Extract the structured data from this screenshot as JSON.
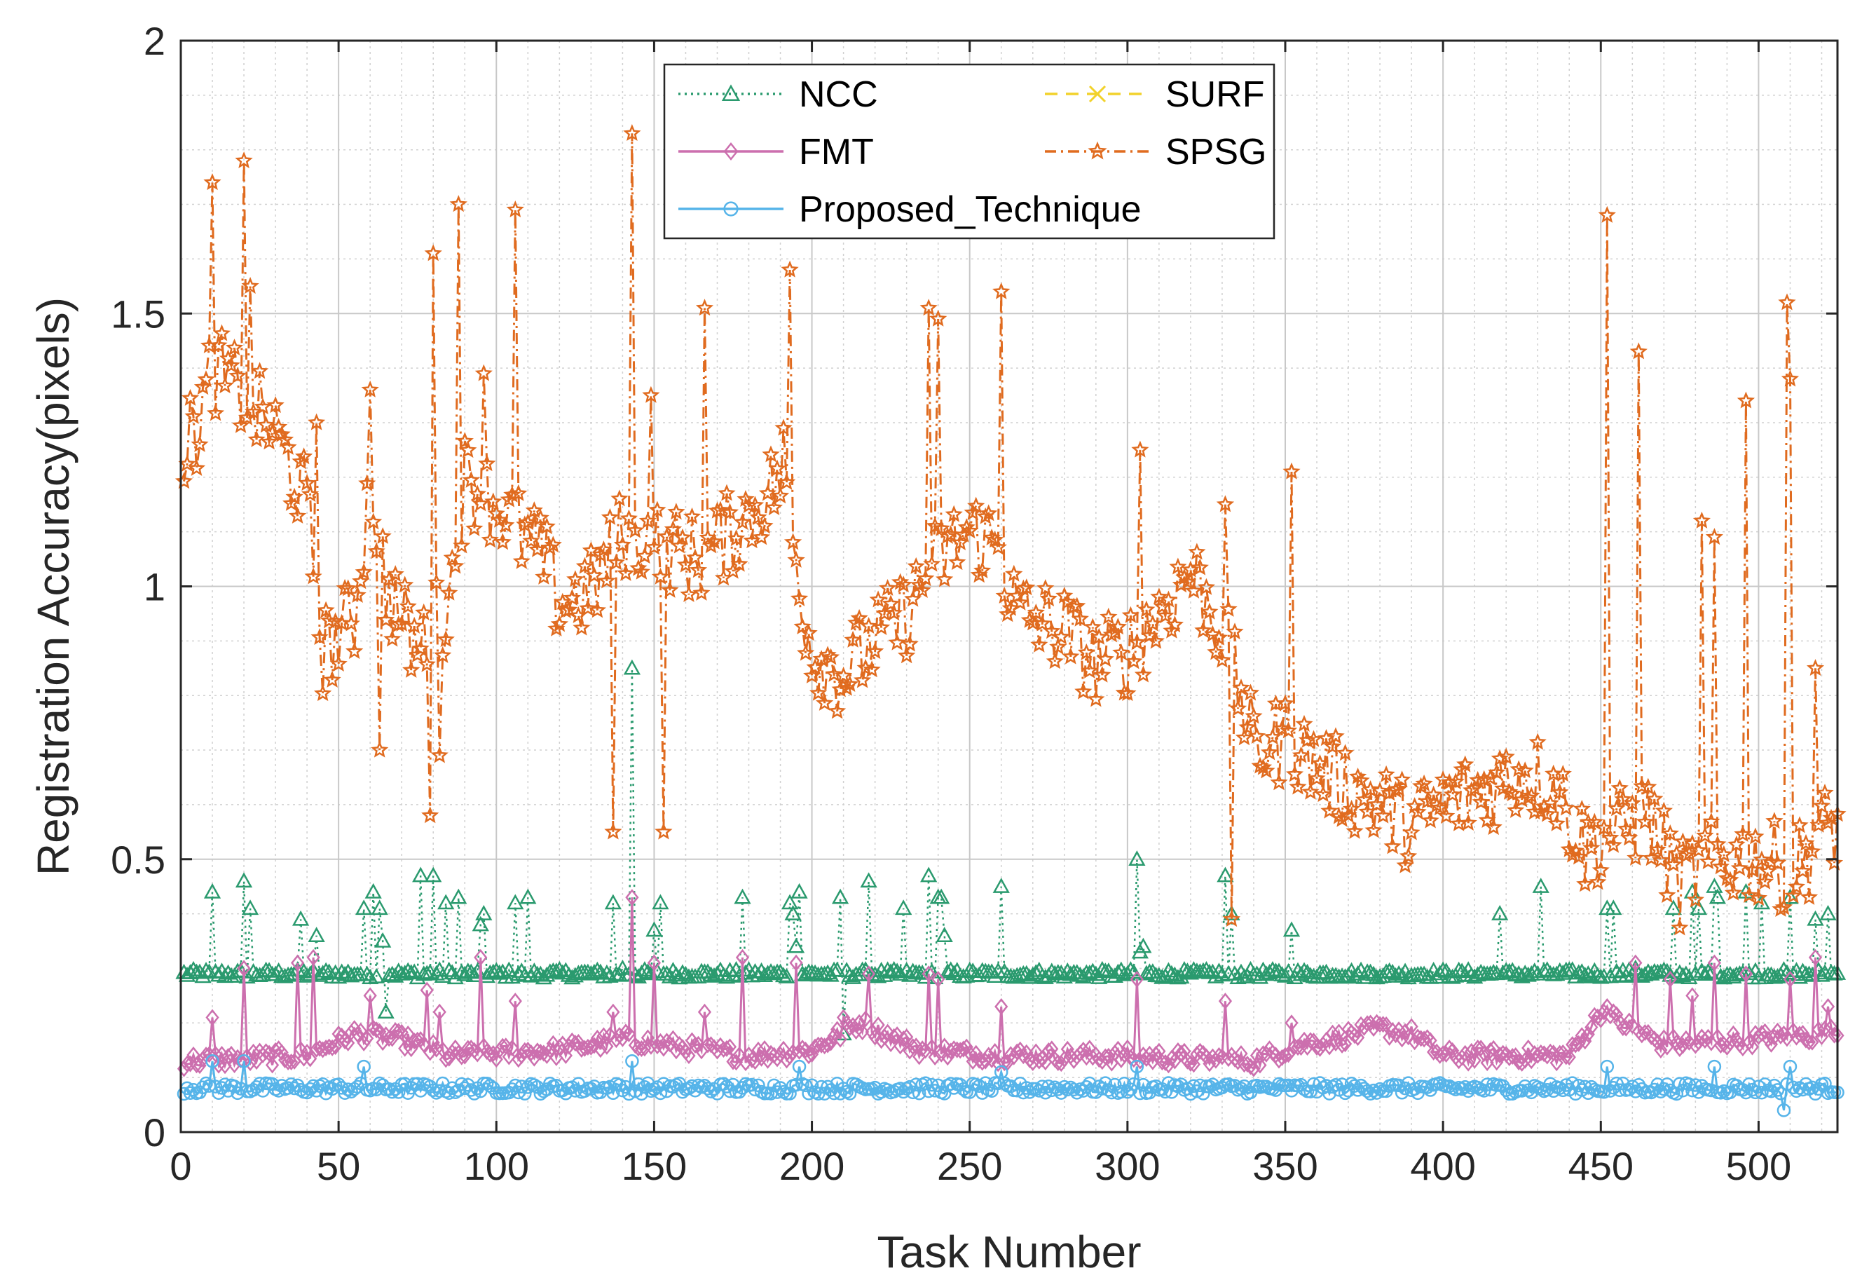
{
  "chart_data": {
    "type": "line",
    "title": "",
    "xlabel": "Task Number",
    "ylabel": "Registration Accuracy(pixels)",
    "xlim": [
      0,
      525
    ],
    "ylim": [
      0,
      2
    ],
    "grid": true,
    "minor_grid": true,
    "legend_position": "top-center",
    "xticks": [
      0,
      50,
      100,
      150,
      200,
      250,
      300,
      350,
      400,
      450,
      500
    ],
    "yticks": [
      0,
      0.5,
      1,
      1.5,
      2
    ],
    "x_tick_labels": [
      "0",
      "50",
      "100",
      "150",
      "200",
      "250",
      "300",
      "350",
      "400",
      "450",
      "500"
    ],
    "y_tick_labels": [
      "0",
      "0.5",
      "1",
      "1.5",
      "2"
    ],
    "n_tasks": 525,
    "series": [
      {
        "name": "NCC",
        "color": "#2a9a6e",
        "line_style": "dotted",
        "marker": "triangle",
        "baseline": 0.29,
        "spikes": [
          [
            10,
            0.44
          ],
          [
            20,
            0.46
          ],
          [
            22,
            0.41
          ],
          [
            38,
            0.39
          ],
          [
            43,
            0.36
          ],
          [
            58,
            0.41
          ],
          [
            61,
            0.44
          ],
          [
            63,
            0.41
          ],
          [
            64,
            0.35
          ],
          [
            65,
            0.22
          ],
          [
            76,
            0.47
          ],
          [
            80,
            0.47
          ],
          [
            84,
            0.42
          ],
          [
            88,
            0.43
          ],
          [
            95,
            0.38
          ],
          [
            96,
            0.4
          ],
          [
            106,
            0.42
          ],
          [
            110,
            0.43
          ],
          [
            137,
            0.42
          ],
          [
            140,
            0.3
          ],
          [
            143,
            0.85
          ],
          [
            150,
            0.37
          ],
          [
            152,
            0.42
          ],
          [
            178,
            0.43
          ],
          [
            193,
            0.42
          ],
          [
            194,
            0.4
          ],
          [
            195,
            0.34
          ],
          [
            196,
            0.44
          ],
          [
            209,
            0.43
          ],
          [
            210,
            0.18
          ],
          [
            218,
            0.46
          ],
          [
            229,
            0.41
          ],
          [
            237,
            0.47
          ],
          [
            240,
            0.43
          ],
          [
            241,
            0.43
          ],
          [
            242,
            0.36
          ],
          [
            260,
            0.45
          ],
          [
            303,
            0.5
          ],
          [
            304,
            0.33
          ],
          [
            305,
            0.34
          ],
          [
            331,
            0.47
          ],
          [
            333,
            0.4
          ],
          [
            352,
            0.37
          ],
          [
            418,
            0.4
          ],
          [
            431,
            0.45
          ],
          [
            452,
            0.41
          ],
          [
            454,
            0.41
          ],
          [
            461,
            0.3
          ],
          [
            473,
            0.41
          ],
          [
            479,
            0.44
          ],
          [
            481,
            0.41
          ],
          [
            486,
            0.45
          ],
          [
            487,
            0.43
          ],
          [
            496,
            0.44
          ],
          [
            501,
            0.42
          ],
          [
            510,
            0.43
          ],
          [
            518,
            0.39
          ],
          [
            522,
            0.4
          ]
        ]
      },
      {
        "name": "SURF",
        "color": "#f2d22b",
        "line_style": "dashed",
        "marker": "x",
        "values": []
      },
      {
        "name": "FMT",
        "color": "#cc6fae",
        "line_style": "solid",
        "marker": "diamond",
        "base_profile": [
          [
            0,
            0.13
          ],
          [
            40,
            0.14
          ],
          [
            55,
            0.18
          ],
          [
            70,
            0.17
          ],
          [
            85,
            0.14
          ],
          [
            120,
            0.15
          ],
          [
            140,
            0.17
          ],
          [
            180,
            0.14
          ],
          [
            200,
            0.15
          ],
          [
            215,
            0.2
          ],
          [
            235,
            0.15
          ],
          [
            260,
            0.14
          ],
          [
            300,
            0.14
          ],
          [
            340,
            0.13
          ],
          [
            355,
            0.16
          ],
          [
            365,
            0.17
          ],
          [
            380,
            0.19
          ],
          [
            390,
            0.18
          ],
          [
            400,
            0.14
          ],
          [
            440,
            0.14
          ],
          [
            450,
            0.22
          ],
          [
            470,
            0.16
          ],
          [
            525,
            0.18
          ]
        ],
        "spikes": [
          [
            10,
            0.21
          ],
          [
            20,
            0.3
          ],
          [
            37,
            0.31
          ],
          [
            42,
            0.32
          ],
          [
            60,
            0.25
          ],
          [
            78,
            0.26
          ],
          [
            82,
            0.22
          ],
          [
            95,
            0.32
          ],
          [
            106,
            0.24
          ],
          [
            137,
            0.22
          ],
          [
            143,
            0.43
          ],
          [
            150,
            0.31
          ],
          [
            166,
            0.22
          ],
          [
            178,
            0.32
          ],
          [
            195,
            0.31
          ],
          [
            210,
            0.21
          ],
          [
            218,
            0.29
          ],
          [
            237,
            0.29
          ],
          [
            240,
            0.28
          ],
          [
            260,
            0.23
          ],
          [
            303,
            0.28
          ],
          [
            331,
            0.24
          ],
          [
            352,
            0.2
          ],
          [
            452,
            0.23
          ],
          [
            461,
            0.31
          ],
          [
            472,
            0.28
          ],
          [
            479,
            0.25
          ],
          [
            486,
            0.31
          ],
          [
            496,
            0.29
          ],
          [
            510,
            0.28
          ],
          [
            518,
            0.32
          ],
          [
            522,
            0.23
          ]
        ]
      },
      {
        "name": "SPSG",
        "color": "#e06b1f",
        "line_style": "dashdot",
        "marker": "pentagram",
        "base_profile": [
          [
            0,
            1.24
          ],
          [
            5,
            1.29
          ],
          [
            10,
            1.4
          ],
          [
            20,
            1.35
          ],
          [
            30,
            1.28
          ],
          [
            40,
            1.15
          ],
          [
            45,
            0.88
          ],
          [
            55,
            0.94
          ],
          [
            60,
            1.2
          ],
          [
            65,
            1.0
          ],
          [
            75,
            0.88
          ],
          [
            85,
            0.97
          ],
          [
            90,
            1.2
          ],
          [
            100,
            1.15
          ],
          [
            110,
            1.08
          ],
          [
            115,
            1.05
          ],
          [
            120,
            0.97
          ],
          [
            130,
            0.99
          ],
          [
            140,
            1.1
          ],
          [
            150,
            1.08
          ],
          [
            165,
            1.05
          ],
          [
            180,
            1.13
          ],
          [
            190,
            1.2
          ],
          [
            200,
            0.88
          ],
          [
            210,
            0.84
          ],
          [
            220,
            0.9
          ],
          [
            230,
            0.95
          ],
          [
            240,
            1.05
          ],
          [
            250,
            1.1
          ],
          [
            258,
            1.08
          ],
          [
            265,
            0.95
          ],
          [
            280,
            0.92
          ],
          [
            290,
            0.86
          ],
          [
            300,
            0.88
          ],
          [
            310,
            0.95
          ],
          [
            320,
            1.03
          ],
          [
            330,
            0.92
          ],
          [
            336,
            0.8
          ],
          [
            340,
            0.7
          ],
          [
            350,
            0.72
          ],
          [
            365,
            0.65
          ],
          [
            380,
            0.6
          ],
          [
            390,
            0.56
          ],
          [
            400,
            0.6
          ],
          [
            410,
            0.62
          ],
          [
            425,
            0.66
          ],
          [
            435,
            0.64
          ],
          [
            445,
            0.52
          ],
          [
            455,
            0.55
          ],
          [
            465,
            0.58
          ],
          [
            475,
            0.45
          ],
          [
            480,
            0.48
          ],
          [
            490,
            0.5
          ],
          [
            500,
            0.5
          ],
          [
            510,
            0.48
          ],
          [
            515,
            0.5
          ],
          [
            520,
            0.55
          ],
          [
            525,
            0.56
          ]
        ],
        "spikes": [
          [
            10,
            1.74
          ],
          [
            20,
            1.78
          ],
          [
            22,
            1.55
          ],
          [
            43,
            1.3
          ],
          [
            60,
            1.36
          ],
          [
            63,
            0.7
          ],
          [
            79,
            0.58
          ],
          [
            80,
            1.61
          ],
          [
            82,
            0.69
          ],
          [
            88,
            1.7
          ],
          [
            96,
            1.39
          ],
          [
            106,
            1.69
          ],
          [
            137,
            0.55
          ],
          [
            143,
            1.83
          ],
          [
            149,
            1.35
          ],
          [
            153,
            0.55
          ],
          [
            166,
            1.51
          ],
          [
            191,
            1.29
          ],
          [
            193,
            1.58
          ],
          [
            237,
            1.51
          ],
          [
            240,
            1.49
          ],
          [
            260,
            1.54
          ],
          [
            304,
            1.25
          ],
          [
            331,
            1.15
          ],
          [
            333,
            0.39
          ],
          [
            352,
            1.21
          ],
          [
            452,
            1.68
          ],
          [
            462,
            1.43
          ],
          [
            482,
            1.12
          ],
          [
            486,
            1.09
          ],
          [
            496,
            1.34
          ],
          [
            509,
            1.52
          ],
          [
            510,
            1.38
          ],
          [
            518,
            0.85
          ]
        ]
      },
      {
        "name": "Proposed_Technique",
        "color": "#56b4e9",
        "line_style": "solid",
        "marker": "circle",
        "baseline": 0.08,
        "spikes": [
          [
            10,
            0.13
          ],
          [
            20,
            0.13
          ],
          [
            58,
            0.12
          ],
          [
            143,
            0.13
          ],
          [
            196,
            0.12
          ],
          [
            260,
            0.11
          ],
          [
            303,
            0.12
          ],
          [
            452,
            0.12
          ],
          [
            486,
            0.12
          ],
          [
            508,
            0.04
          ],
          [
            510,
            0.12
          ]
        ]
      }
    ]
  }
}
